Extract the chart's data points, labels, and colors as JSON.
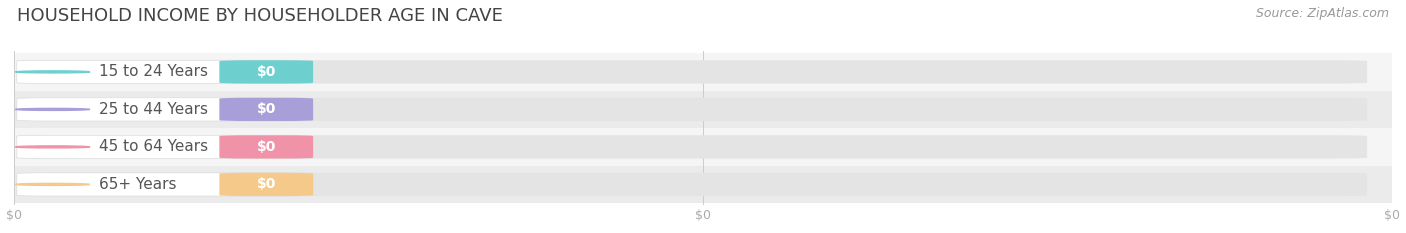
{
  "title": "HOUSEHOLD INCOME BY HOUSEHOLDER AGE IN CAVE",
  "source_text": "Source: ZipAtlas.com",
  "categories": [
    "15 to 24 Years",
    "25 to 44 Years",
    "45 to 64 Years",
    "65+ Years"
  ],
  "values": [
    0,
    0,
    0,
    0
  ],
  "bar_colors": [
    "#6ecfcf",
    "#a89fd8",
    "#f093a8",
    "#f5c98a"
  ],
  "background_color": "#ffffff",
  "row_bg_colors": [
    "#f5f5f5",
    "#ebebeb"
  ],
  "title_fontsize": 13,
  "label_fontsize": 11,
  "value_fontsize": 10,
  "source_fontsize": 9,
  "tick_label_color": "#aaaaaa",
  "title_color": "#444444"
}
